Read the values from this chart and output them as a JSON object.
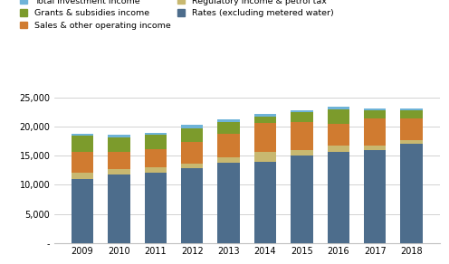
{
  "years": [
    "2009",
    "2010",
    "2011",
    "2012",
    "2013",
    "2014",
    "2015",
    "2016",
    "2017",
    "2018"
  ],
  "series": {
    "Rates (excluding metered water)": [
      11000,
      11700,
      12100,
      12800,
      13800,
      14000,
      15000,
      15700,
      16000,
      17000
    ],
    "Regulatory income & petrol tax": [
      1100,
      1000,
      900,
      800,
      900,
      1600,
      900,
      1000,
      700,
      700
    ],
    "Sales & other operating income": [
      3500,
      3000,
      3200,
      3800,
      4100,
      5000,
      4900,
      3800,
      4800,
      3800
    ],
    "Grants & subsidies income": [
      2800,
      2500,
      2500,
      2300,
      2000,
      1200,
      1700,
      2500,
      1300,
      1300
    ],
    "Total investment income": [
      400,
      400,
      200,
      700,
      500,
      400,
      300,
      500,
      400,
      400
    ]
  },
  "colors": {
    "Rates (excluding metered water)": "#4D6D8C",
    "Regulatory income & petrol tax": "#C8B870",
    "Sales & other operating income": "#D07B30",
    "Grants & subsidies income": "#7C9B2C",
    "Total investment income": "#6EB3D8"
  },
  "stack_order": [
    "Rates (excluding metered water)",
    "Regulatory income & petrol tax",
    "Sales & other operating income",
    "Grants & subsidies income",
    "Total investment income"
  ],
  "legend_order": [
    "Total investment income",
    "Grants & subsidies income",
    "Sales & other operating income",
    "Regulatory income & petrol tax",
    "Rates (excluding metered water)"
  ],
  "ylim": [
    0,
    25000
  ],
  "yticks": [
    0,
    5000,
    10000,
    15000,
    20000,
    25000
  ],
  "ytick_labels": [
    "-",
    "5,000",
    "10,000",
    "15,000",
    "20,000",
    "25,000"
  ],
  "background_color": "#FFFFFF",
  "grid_color": "#C0C0C0"
}
